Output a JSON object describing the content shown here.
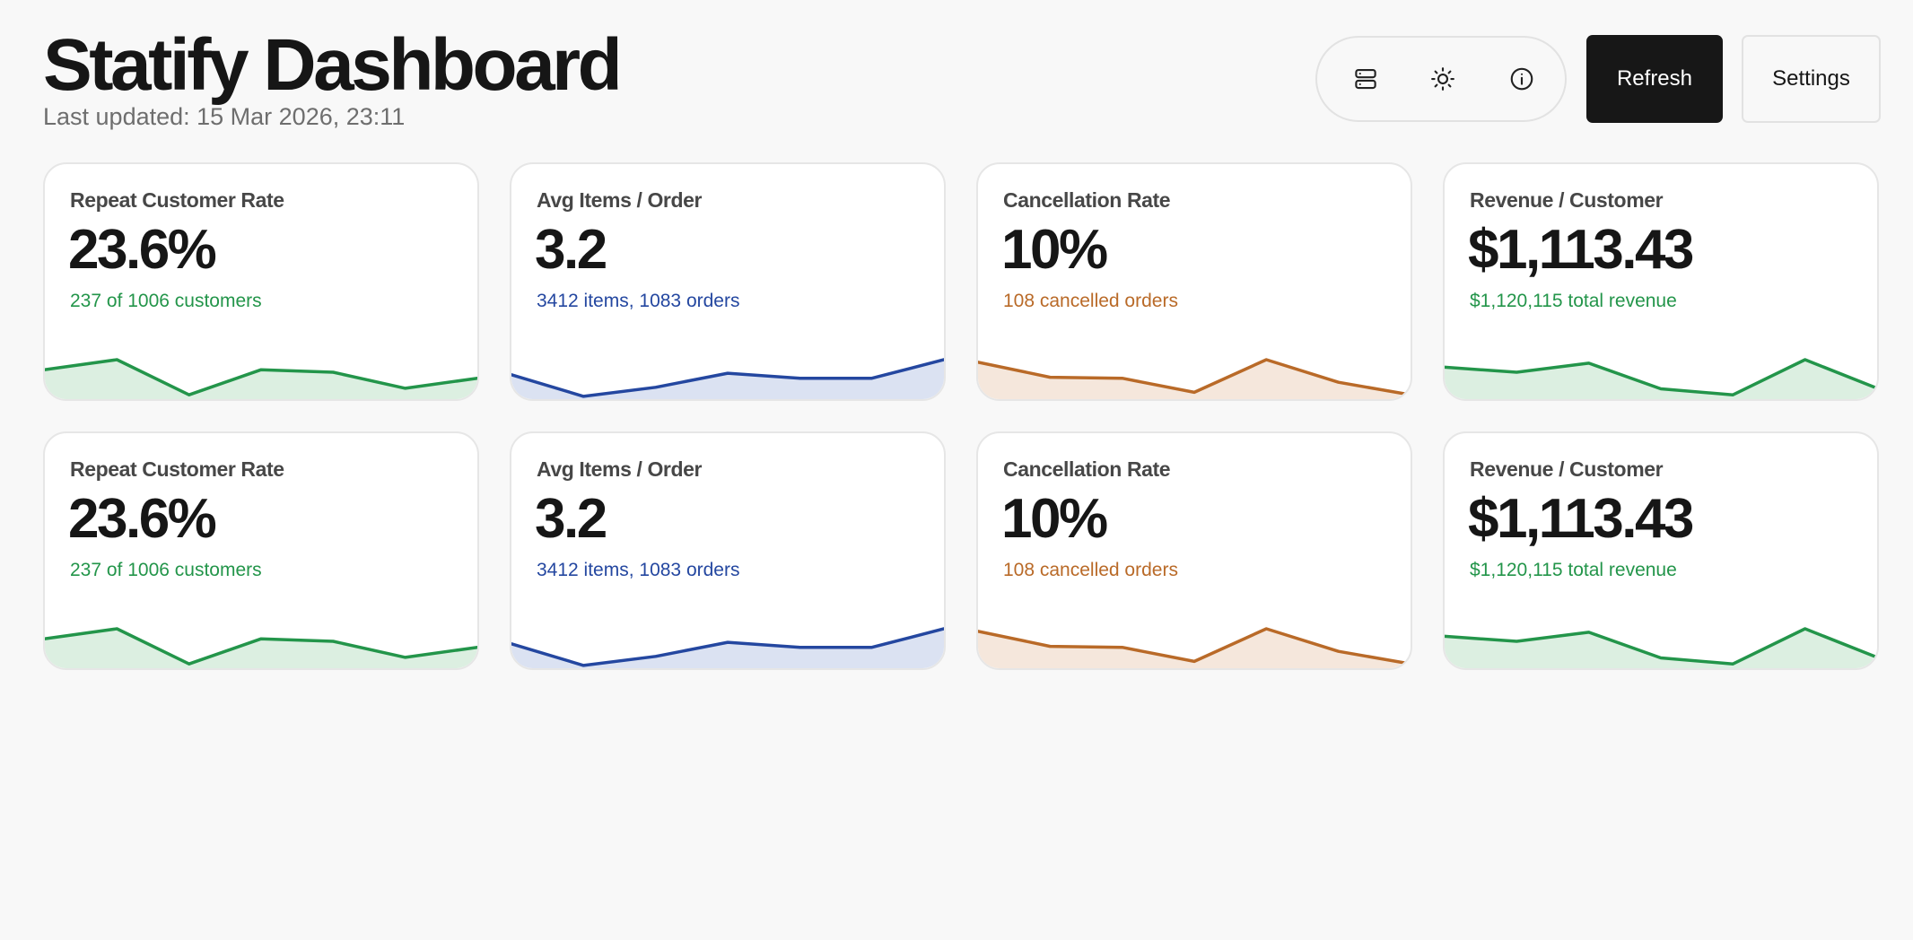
{
  "header": {
    "title": "Statify Dashboard",
    "subtitle": "Last updated: 15 Mar 2026, 23:11",
    "icons": [
      "server-icon",
      "sun-icon",
      "info-icon"
    ],
    "refresh_label": "Refresh",
    "settings_label": "Settings"
  },
  "colors": {
    "green": "#23954a",
    "green_fill": "#dcefe1",
    "blue": "#2447a0",
    "blue_fill": "#dbe2f2",
    "orange": "#b96a28",
    "orange_fill": "#f5e7dc"
  },
  "cards": [
    {
      "label": "Repeat Customer Rate",
      "value": "23.6%",
      "sub": "237 of 1006 customers",
      "color": "green",
      "spark": [
        0.55,
        0.75,
        0.05,
        0.55,
        0.5,
        0.18,
        0.38
      ]
    },
    {
      "label": "Avg Items / Order",
      "value": "3.2",
      "sub": "3412 items, 1083 orders",
      "color": "blue",
      "spark": [
        0.45,
        0.02,
        0.2,
        0.48,
        0.38,
        0.38,
        0.75
      ]
    },
    {
      "label": "Cancellation Rate",
      "value": "10%",
      "sub": "108 cancelled orders",
      "color": "orange",
      "spark": [
        0.7,
        0.4,
        0.38,
        0.1,
        0.75,
        0.3,
        0.05
      ]
    },
    {
      "label": "Revenue / Customer",
      "value": "$1,113.43",
      "sub": "$1,120,115 total revenue",
      "color": "green",
      "spark": [
        0.6,
        0.5,
        0.68,
        0.17,
        0.05,
        0.75,
        0.18
      ]
    },
    {
      "label": "Repeat Customer Rate",
      "value": "23.6%",
      "sub": "237 of 1006 customers",
      "color": "green",
      "spark": [
        0.55,
        0.75,
        0.05,
        0.55,
        0.5,
        0.18,
        0.38
      ]
    },
    {
      "label": "Avg Items / Order",
      "value": "3.2",
      "sub": "3412 items, 1083 orders",
      "color": "blue",
      "spark": [
        0.45,
        0.02,
        0.2,
        0.48,
        0.38,
        0.38,
        0.75
      ]
    },
    {
      "label": "Cancellation Rate",
      "value": "10%",
      "sub": "108 cancelled orders",
      "color": "orange",
      "spark": [
        0.7,
        0.4,
        0.38,
        0.1,
        0.75,
        0.3,
        0.05
      ]
    },
    {
      "label": "Revenue / Customer",
      "value": "$1,113.43",
      "sub": "$1,120,115 total revenue",
      "color": "green",
      "spark": [
        0.6,
        0.5,
        0.68,
        0.17,
        0.05,
        0.75,
        0.18
      ]
    }
  ]
}
